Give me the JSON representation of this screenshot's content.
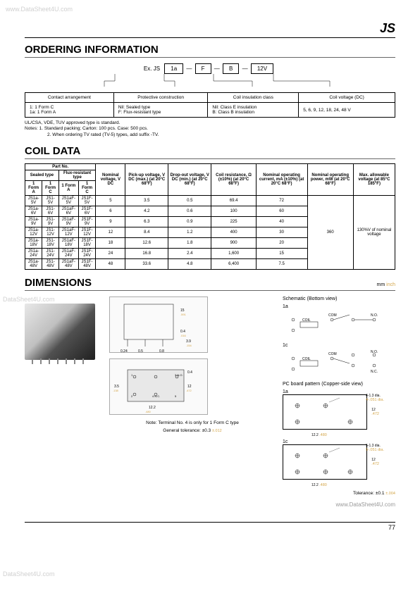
{
  "watermarks": {
    "top_left": "www.DataSheet4U.com",
    "mid_left": "DataSheet4U.com",
    "bottom_left": "DataSheet4U.com",
    "footer_right": "www.DataSheet4U.com"
  },
  "product_code": "JS",
  "sections": {
    "ordering": "ORDERING INFORMATION",
    "coil": "COIL DATA",
    "dimensions": "DIMENSIONS"
  },
  "ordering_example": {
    "prefix": "Ex. JS",
    "boxes": [
      "1a",
      "F",
      "B",
      "12V"
    ]
  },
  "ordering_table": {
    "headers": [
      "Contact arrangement",
      "Protective construction",
      "Coil insulation class",
      "Coil voltage (DC)"
    ],
    "cells": [
      "1: 1 Form C\n1a: 1 Form A",
      "Nil: Sealed type\nF: Flux-resistant type",
      "Nil: Class E insulation\nB: Class B insulation",
      "5, 6, 9, 12, 18, 24, 48 V"
    ]
  },
  "ordering_notes": {
    "line1": "UL/CSA, VDE, TUV approved type is standard.",
    "line2": "Notes: 1. Standard packing; Carton: 100 pcs. Case: 500 pcs.",
    "line3": "2. When ordering TV rated (TV-5) types, add suffix -TV."
  },
  "coil_table": {
    "header_row1": [
      "Part No.",
      "Nominal voltage, V DC",
      "Pick-up voltage, V DC (max.) (at 20°C 68°F)",
      "Drop-out voltage, V DC (min.) (at 20°C 68°F)",
      "Coil resistance, Ω (±10%) (at 20°C 68°F)",
      "Nominal operating current, mA (±10%) (at 20°C 68°F)",
      "Nominal operating power, mW (at 20°C 68°F)",
      "Max. allowable voltage (at 85°C 185°F)"
    ],
    "header_row2": [
      "Sealed type",
      "Flux-resistant type"
    ],
    "header_row3": [
      "1 Form A",
      "1 Form C",
      "1 Form A",
      "1 Form C"
    ],
    "rows": [
      [
        "JS1a-5V",
        "JS1-5V",
        "JS1aF-5V",
        "JS1F-5V",
        "5",
        "3.5",
        "0.5",
        "69.4",
        "72"
      ],
      [
        "JS1a-6V",
        "JS1-6V",
        "JS1aF-6V",
        "JS1F-6V",
        "6",
        "4.2",
        "0.6",
        "100",
        "60"
      ],
      [
        "JS1a-9V",
        "JS1-9V",
        "JS1aF-9V",
        "JS1F-9V",
        "9",
        "6.3",
        "0.9",
        "225",
        "40"
      ],
      [
        "JS1a-12V",
        "JS1-12V",
        "JS1aF-12V",
        "JS1F-12V",
        "12",
        "8.4",
        "1.2",
        "400",
        "30"
      ],
      [
        "JS1a-18V",
        "JS1-18V",
        "JS1aF-18V",
        "JS1F-18V",
        "18",
        "12.6",
        "1.8",
        "900",
        "20"
      ],
      [
        "JS1a-24V",
        "JS1-24V",
        "JS1aF-24V",
        "JS1F-24V",
        "24",
        "16.8",
        "2.4",
        "1,600",
        "15"
      ],
      [
        "JS1a-48V",
        "JS1-48V",
        "JS1aF-48V",
        "JS1F-48V",
        "48",
        "33.6",
        "4.8",
        "6,400",
        "7.5"
      ]
    ],
    "power_merged": "360",
    "voltage_merged": "130%V of nominal voltage"
  },
  "dimensions": {
    "mm_label": "mm",
    "inch_label": "inch",
    "note1": "Note: Terminal No. 4 is only for 1 Form C type",
    "note2": "General tolerance: ±0.3",
    "note2_inch": "±.012",
    "schematic_title": "Schematic (Bottom view)",
    "label_1a": "1a",
    "label_1c": "1c",
    "pcb_title": "PC board pattern (Copper-side view)",
    "hole1": "4-1.3 dia.",
    "hole1_inch": "4-.051 dia.",
    "hole2": "5-1.3 dia.",
    "hole2_inch": "5-.051 dia.",
    "tolerance": "Tolerance: ±0.1",
    "tolerance_inch": "±.004",
    "coil_label": "COIL",
    "com_label": "COM",
    "no_label": "N.O.",
    "nc_label": "N.C.",
    "dim_values": {
      "w": "12.2",
      "w_inch": ".480",
      "h": "12",
      "h_inch": ".472",
      "spacing": "3.5",
      "spacing_inch": ".138"
    }
  },
  "page_number": "77"
}
